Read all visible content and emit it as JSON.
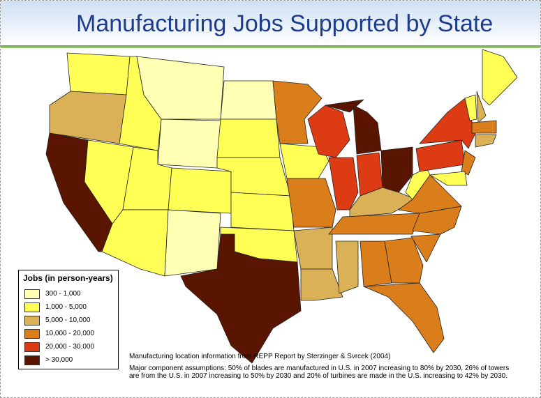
{
  "header": {
    "title": "Manufacturing Jobs Supported by State"
  },
  "legend": {
    "title": "Jobs (in person-years)",
    "items": [
      {
        "label": "300 - 1,000",
        "color": "#ffffb3"
      },
      {
        "label": "1,000 - 5,000",
        "color": "#ffff55"
      },
      {
        "label": "5,000 - 10,000",
        "color": "#dbb157"
      },
      {
        "label": "10,000 - 20,000",
        "color": "#d97e1b"
      },
      {
        "label": "20,000 - 30,000",
        "color": "#dc3b14"
      },
      {
        "label": "> 30,000",
        "color": "#5a1500"
      }
    ]
  },
  "notes": {
    "source": "Manufacturing location information from REPP Report by Sterzinger & Svrcek (2004)",
    "assumptions": "Major component assumptions: 50% of blades are manufactured in U.S. in 2007 increasing to 80% by 2030, 26% of towers are from the U.S. in 2007 increasing to 50% by 2030 and 20% of turbines are made in the U.S. increasing to 42% by 2030."
  }
}
